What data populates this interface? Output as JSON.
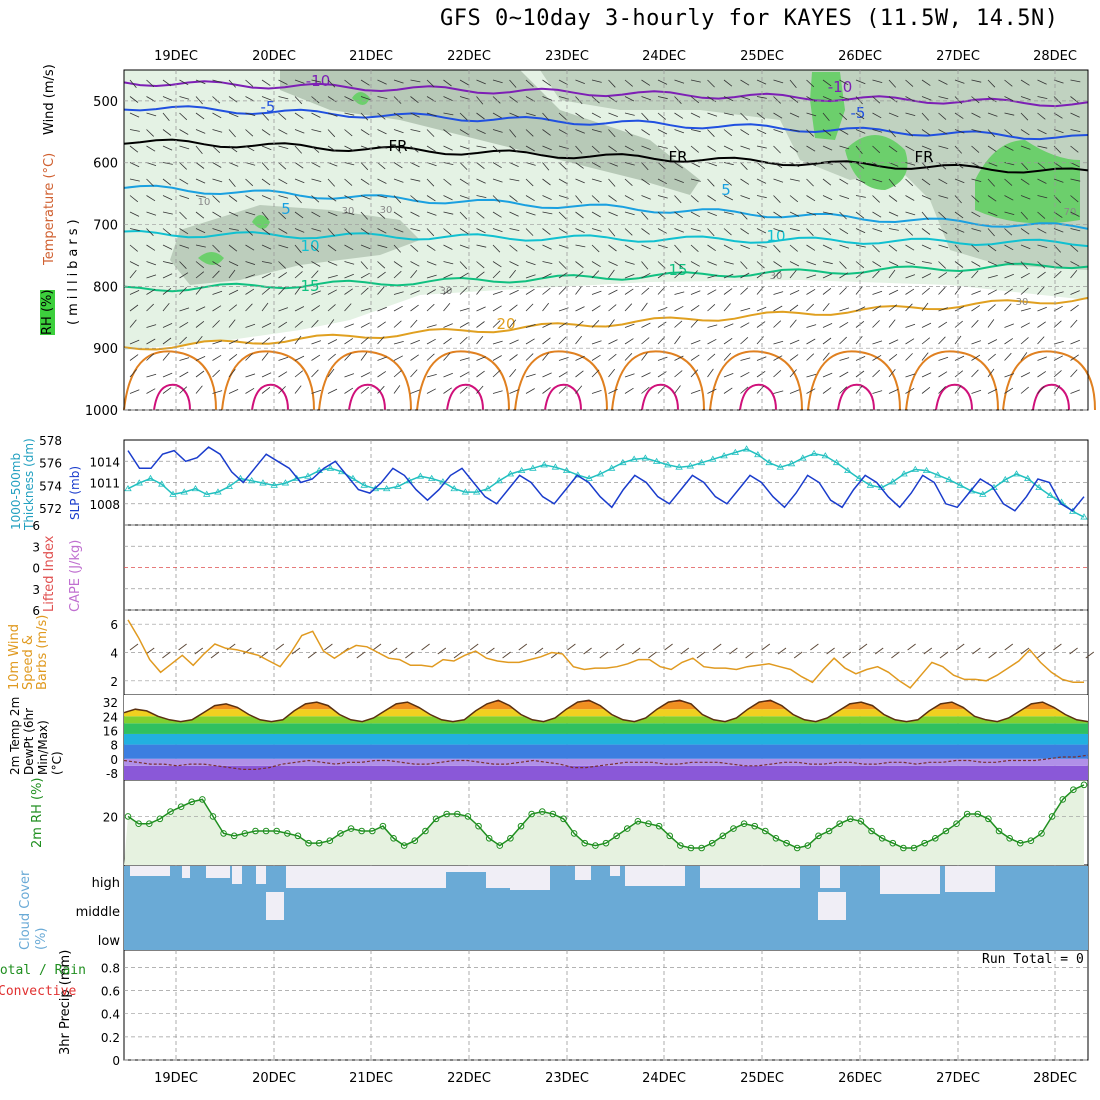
{
  "title": "GFS 0~10day 3-hourly for KAYES (11.5W, 14.5N)",
  "colors": {
    "grid": "#9a9a9a",
    "frame": "#000000",
    "rh_light": "#e4f2e4",
    "rh_mid": "#b7c9b7",
    "rh_high": "#6ccf6c",
    "purple": "#7d1fb5",
    "blue": "#2050e0",
    "sky": "#1aa0e0",
    "cyan": "#10c0d0",
    "teal": "#10c080",
    "gold": "#e0a020",
    "orange": "#e08020",
    "magenta": "#d0107a",
    "slp": "#1a3ccc",
    "thick": "#22c0c0",
    "wind": "#e09a20",
    "temp_fill": "#e86010",
    "rh2m": "#208f20",
    "cloud": "#6aaad6",
    "cloud_bg": "#f0eef6",
    "li_line": "#e05050"
  },
  "chart_data": [
    {
      "type": "contour_cross_section",
      "name": "upper_air",
      "x": [
        "19DEC",
        "20DEC",
        "21DEC",
        "22DEC",
        "23DEC",
        "24DEC",
        "25DEC",
        "26DEC",
        "27DEC",
        "28DEC"
      ],
      "ylabel": "(millibars)",
      "yticks": [
        500,
        600,
        700,
        800,
        900,
        1000
      ],
      "ylim": [
        450,
        1000
      ],
      "side_labels": {
        "wind": "Wind (m/s)",
        "temperature": "Temperature (°C)",
        "rh": "RH (%)"
      },
      "isotherms": [
        {
          "label": "-10",
          "color": "purple",
          "level_start": 470,
          "level_end": 505
        },
        {
          "label": "-5",
          "color": "blue",
          "level_start": 510,
          "level_end": 560
        },
        {
          "label": "FR",
          "color": "frame",
          "level_start": 565,
          "level_end": 615
        },
        {
          "label": "5",
          "color": "sky",
          "level_start": 640,
          "level_end": 705
        },
        {
          "label": "10",
          "color": "cyan",
          "level_start": 715,
          "level_end": 730
        },
        {
          "label": "15",
          "color": "teal",
          "level_start": 805,
          "level_end": 765
        },
        {
          "label": "20",
          "color": "gold",
          "level_start": 900,
          "level_end": 820
        }
      ],
      "contour_labels": [
        "-10",
        "-10",
        "-5",
        "-5",
        "FR",
        "FR",
        "FR",
        "5",
        "5",
        "10",
        "10",
        "15",
        "15",
        "20",
        "30",
        "30",
        "30",
        "30",
        "30",
        "10",
        "70"
      ]
    },
    {
      "type": "line",
      "name": "slp_thickness",
      "ylabel_left": "1000-500mb Thickness (dm)",
      "ylabel_right": "SLP (mb)",
      "yticks_left": [
        572,
        574,
        576,
        578
      ],
      "yticks_right": [
        1008,
        1011,
        1014
      ],
      "series": [
        {
          "name": "SLP (mb)",
          "color": "slp",
          "ylim": [
            1005,
            1017
          ],
          "values": [
            1015.5,
            1013,
            1013,
            1015,
            1015.5,
            1014,
            1014.5,
            1016,
            1015,
            1012.5,
            1011,
            1013,
            1015,
            1014,
            1013,
            1011,
            1011.5,
            1013,
            1014,
            1012,
            1010,
            1009.5,
            1011,
            1013,
            1012,
            1010,
            1008.5,
            1010,
            1012,
            1013,
            1011,
            1009,
            1008,
            1010,
            1012,
            1011,
            1009,
            1008,
            1010,
            1012,
            1011,
            1009,
            1007.5,
            1010,
            1012,
            1011,
            1009,
            1008,
            1010,
            1012,
            1011,
            1009,
            1008,
            1010,
            1012,
            1011,
            1009,
            1007.5,
            1009.5,
            1012,
            1011,
            1008.5,
            1007.5,
            1010,
            1012,
            1011,
            1009,
            1007.5,
            1009.5,
            1012,
            1011,
            1008,
            1007.5,
            1009.5,
            1011.5,
            1010.5,
            1008,
            1007,
            1009,
            1011.5,
            1011,
            1008,
            1007,
            1009
          ]
        },
        {
          "name": "1000-500mb Thickness (dm)",
          "color": "thick",
          "ylim": [
            570.5,
            578
          ],
          "values": [
            573.7,
            574.2,
            574.6,
            574.1,
            573.2,
            573.4,
            573.7,
            573.2,
            573.4,
            573.9,
            574.6,
            574.4,
            574.2,
            574.0,
            574.2,
            574.6,
            574.8,
            575.3,
            575.5,
            575.2,
            574.6,
            574.0,
            573.7,
            573.7,
            573.9,
            574.4,
            574.8,
            574.6,
            574.3,
            573.7,
            573.4,
            573.4,
            573.7,
            574.4,
            575.0,
            575.3,
            575.5,
            575.8,
            575.6,
            575.3,
            574.9,
            574.6,
            575.0,
            575.5,
            576.0,
            576.3,
            576.4,
            576.1,
            575.8,
            575.6,
            575.7,
            576.0,
            576.3,
            576.6,
            576.9,
            577.2,
            576.7,
            576.0,
            575.6,
            575.9,
            576.4,
            576.8,
            576.6,
            576.0,
            575.3,
            574.6,
            574.0,
            573.8,
            574.3,
            575.0,
            575.4,
            575.3,
            574.9,
            574.5,
            574.0,
            573.5,
            573.2,
            573.8,
            574.5,
            575.0,
            574.6,
            573.8,
            573.1,
            572.5,
            571.7,
            571.2
          ]
        }
      ]
    },
    {
      "type": "line",
      "name": "stability",
      "ylabel_left": "Lifted Index",
      "ylabel_right": "CAPE (J/kg)",
      "yticks": [
        -6,
        -3,
        0,
        3,
        6
      ],
      "ylim": [
        -6,
        6
      ],
      "series": [
        {
          "name": "Lifted Index",
          "color": "li_line",
          "values": []
        }
      ]
    },
    {
      "type": "line",
      "name": "surface_wind",
      "ylabel": "10m Wind Speed & Barbs (m/s)",
      "yticks": [
        2,
        4,
        6
      ],
      "ylim": [
        1,
        7
      ],
      "series": [
        {
          "name": "10m Wind Speed",
          "color": "wind",
          "values": [
            6.3,
            5.0,
            3.5,
            2.6,
            3.2,
            3.8,
            3.1,
            3.9,
            4.6,
            4.3,
            4.2,
            4.0,
            3.8,
            3.4,
            3.0,
            4.0,
            5.2,
            5.5,
            4.1,
            3.6,
            4.1,
            4.5,
            4.4,
            4.0,
            3.6,
            3.5,
            3.1,
            3.1,
            3.0,
            3.5,
            3.4,
            3.8,
            4.1,
            3.6,
            3.4,
            3.3,
            3.3,
            3.5,
            3.7,
            4.0,
            3.9,
            3.0,
            2.8,
            2.9,
            2.9,
            3.0,
            3.2,
            3.5,
            3.5,
            3.0,
            2.8,
            3.3,
            3.6,
            3.0,
            2.9,
            2.9,
            2.8,
            3.0,
            3.1,
            3.2,
            3.0,
            2.8,
            2.3,
            1.9,
            2.8,
            3.6,
            2.9,
            2.5,
            2.8,
            3.0,
            2.6,
            2.0,
            1.5,
            2.4,
            3.3,
            3.0,
            2.4,
            2.1,
            2.1,
            2.0,
            2.4,
            2.9,
            3.4,
            4.2,
            3.3,
            2.6,
            2.1,
            1.9,
            1.9
          ]
        }
      ]
    },
    {
      "type": "area",
      "name": "temperature",
      "ylabel": "2m Temp 2m DewPt (6hr Min/Max) (°C)",
      "yticks": [
        -8,
        0,
        8,
        16,
        24,
        32
      ],
      "ylim": [
        -12,
        36
      ],
      "series": [
        {
          "name": "2m Temp",
          "color": "temp_fill",
          "values": [
            26,
            28,
            27,
            24,
            22,
            21,
            22,
            26,
            30,
            31,
            29,
            25,
            22,
            21,
            22,
            27,
            31,
            32,
            30,
            25,
            22,
            21,
            23,
            27,
            31,
            32,
            29,
            25,
            22,
            21,
            22,
            27,
            31,
            33,
            30,
            25,
            22,
            21,
            23,
            28,
            32,
            33,
            30,
            25,
            22,
            21,
            23,
            28,
            32,
            33,
            31,
            25,
            22,
            21,
            23,
            28,
            32,
            33,
            30,
            25,
            22,
            21,
            23,
            27,
            31,
            32,
            30,
            25,
            22,
            21,
            22,
            27,
            31,
            32,
            29,
            24,
            22,
            21,
            23,
            27,
            31,
            32,
            29,
            25,
            22,
            21
          ]
        },
        {
          "name": "2m DewPt",
          "color": "magenta",
          "values": [
            -1,
            -2,
            -3,
            -3,
            -4,
            -3,
            -3,
            -4,
            -5,
            -6,
            -6,
            -5,
            -3,
            -2,
            -1,
            -2,
            -3,
            -2,
            -2,
            -1,
            -1,
            -2,
            -3,
            -3,
            -2,
            -1,
            -1,
            -2,
            -3,
            -3,
            -2,
            -1,
            -2,
            -3,
            -5,
            -5,
            -4,
            -3,
            -2,
            -2,
            -2,
            -3,
            -3,
            -2,
            -2,
            -2,
            -3,
            -4,
            -4,
            -3,
            -2,
            -2,
            -3,
            -3,
            -2,
            -2,
            -3,
            -3,
            -2,
            -2,
            -3,
            -2,
            -2,
            -1,
            -1,
            -2,
            -2,
            -1,
            -1,
            -1,
            0,
            1,
            1,
            2
          ]
        }
      ]
    },
    {
      "type": "line",
      "name": "relative_humidity",
      "ylabel": "2m RH (%)",
      "yticks": [
        20
      ],
      "ylim": [
        0,
        35
      ],
      "series": [
        {
          "name": "2m RH",
          "color": "rh2m",
          "values": [
            20,
            17,
            17,
            19,
            22,
            24,
            26,
            27,
            20,
            13,
            12,
            13,
            14,
            14,
            14,
            13,
            12,
            9,
            9,
            10,
            13,
            15,
            14,
            14,
            16,
            11,
            8,
            10,
            14,
            19,
            21,
            21,
            20,
            16,
            11,
            8,
            11,
            16,
            21,
            22,
            21,
            19,
            13,
            9,
            8,
            9,
            12,
            15,
            18,
            17,
            16,
            12,
            8,
            7,
            7,
            9,
            12,
            15,
            17,
            16,
            14,
            11,
            9,
            7,
            8,
            12,
            14,
            17,
            19,
            18,
            14,
            11,
            9,
            7,
            7,
            9,
            11,
            14,
            17,
            21,
            21,
            19,
            14,
            11,
            9,
            10,
            13,
            20,
            27,
            31,
            33
          ]
        }
      ]
    },
    {
      "type": "bar",
      "name": "cloud_cover",
      "ylabel": "Cloud Cover (%)",
      "categories": [
        "high",
        "middle",
        "low"
      ]
    },
    {
      "type": "bar",
      "name": "precipitation",
      "ylabel": "3hr Precip (mm)",
      "side_labels": [
        "Total / Rain",
        "Convective"
      ],
      "yticks": [
        0,
        0.2,
        0.4,
        0.6,
        0.8
      ],
      "ylim": [
        0,
        0.95
      ],
      "run_total_label": "Run Total",
      "run_total": "0",
      "values": []
    }
  ]
}
